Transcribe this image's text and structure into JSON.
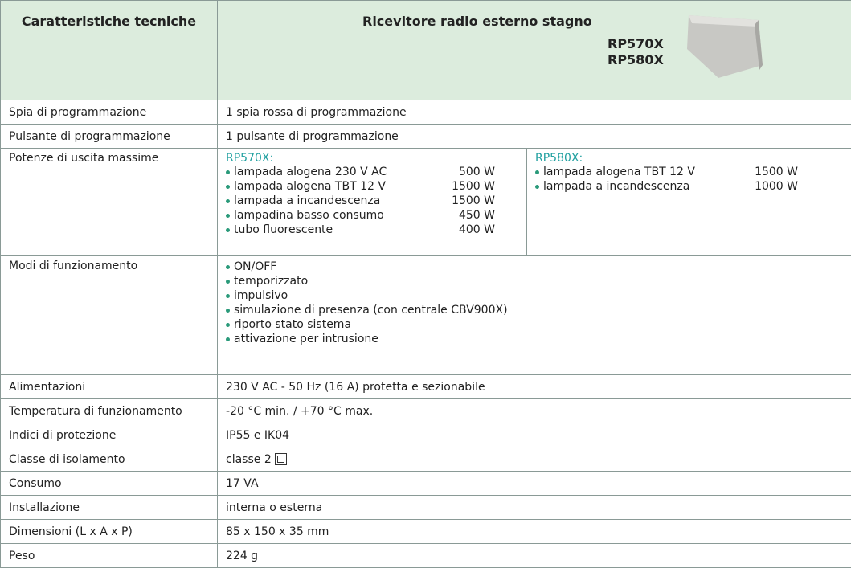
{
  "header": {
    "left": "Caratteristiche tecniche",
    "title": "Ricevitore radio esterno stagno",
    "models": [
      "RP570X",
      "RP580X"
    ]
  },
  "rows": [
    {
      "label": "Spia di programmazione",
      "value": "1 spia rossa di programmazione"
    },
    {
      "label": "Pulsante di programmazione",
      "value": "1 pulsante di programmazione"
    },
    {
      "label": "Potenze di uscita massime",
      "columns": [
        {
          "title": "RP570X:",
          "items": [
            {
              "name": "lampada alogena 230 V AC",
              "power": "500 W"
            },
            {
              "name": "lampada alogena TBT 12 V",
              "power": "1500 W"
            },
            {
              "name": "lampada a incandescenza",
              "power": "1500 W"
            },
            {
              "name": "lampadina basso consumo",
              "power": "450 W"
            },
            {
              "name": "tubo fluorescente",
              "power": "400 W"
            }
          ]
        },
        {
          "title": "RP580X:",
          "items": [
            {
              "name": "lampada alogena TBT 12 V",
              "power": "1500 W"
            },
            {
              "name": "lampada a incandescenza",
              "power": "1000 W"
            }
          ]
        }
      ]
    },
    {
      "label": "Modi di funzionamento",
      "items": [
        "ON/OFF",
        "temporizzato",
        "impulsivo",
        "simulazione di presenza (con centrale CBV900X)",
        "riporto stato sistema",
        "attivazione per intrusione"
      ]
    },
    {
      "label": "Alimentazioni",
      "value": "230 V AC - 50 Hz (16 A) protetta e sezionabile"
    },
    {
      "label": "Temperatura di funzionamento",
      "value": "-20 °C min. / +70 °C max."
    },
    {
      "label": "Indici di protezione",
      "value": "IP55 e IK04"
    },
    {
      "label": "Classe di isolamento",
      "value": "classe 2"
    },
    {
      "label": "Consumo",
      "value": "17 VA"
    },
    {
      "label": "Installazione",
      "value": "interna o esterna"
    },
    {
      "label": "Dimensioni (L x A x P)",
      "value": "85 x 150 x 35 mm"
    },
    {
      "label": "Peso",
      "value": "224 g"
    }
  ]
}
